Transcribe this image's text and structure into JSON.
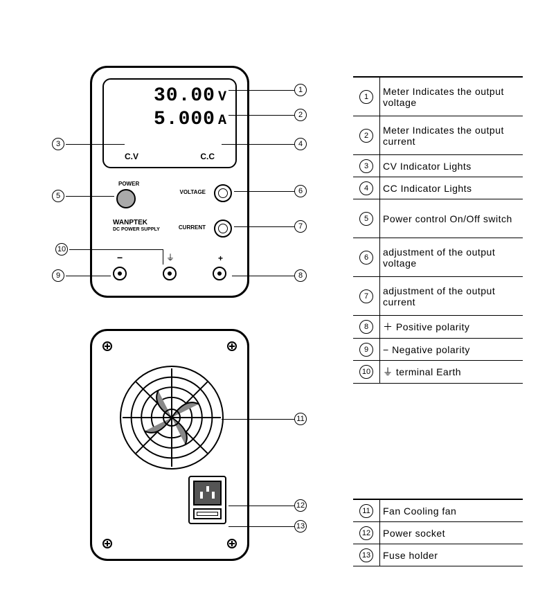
{
  "device": {
    "voltage_reading": "30.00",
    "voltage_unit": "V",
    "current_reading": "5.000",
    "current_unit": "A",
    "cv_label": "C.V",
    "cc_label": "C.C",
    "power_label": "POWER",
    "voltage_knob_label": "VOLTAGE",
    "current_knob_label": "CURRENT",
    "brand": "WANPTEK",
    "subbrand": "DC POWER SUPPLY",
    "neg_symbol": "−",
    "earth_symbol": "⏚",
    "pos_symbol": "+"
  },
  "callouts": {
    "1": "①",
    "2": "②",
    "3": "③",
    "4": "④",
    "5": "⑤",
    "6": "⑥",
    "7": "⑦",
    "8": "⑧",
    "9": "⑨",
    "10": "⑩",
    "11": "⑪",
    "12": "⑫",
    "13": "⑬"
  },
  "nums": {
    "1": "1",
    "2": "2",
    "3": "3",
    "4": "4",
    "5": "5",
    "6": "6",
    "7": "7",
    "8": "8",
    "9": "9",
    "10": "10",
    "11": "11",
    "12": "12",
    "13": "13"
  },
  "legend1": [
    {
      "n": "1",
      "text": "Meter Indicates the output voltage",
      "tall": true
    },
    {
      "n": "2",
      "text": "Meter Indicates the output current",
      "tall": true
    },
    {
      "n": "3",
      "text": "CV Indicator Lights",
      "tall": false
    },
    {
      "n": "4",
      "text": "CC Indicator Lights",
      "tall": false
    },
    {
      "n": "5",
      "text": "Power control On/Off switch",
      "tall": true
    },
    {
      "n": "6",
      "text": "adjustment of the output voltage",
      "tall": true
    },
    {
      "n": "7",
      "text": "adjustment of the output current",
      "tall": true
    },
    {
      "n": "8",
      "text": "＋  Positive polarity",
      "tall": false
    },
    {
      "n": "9",
      "text": "−   Negative polarity",
      "tall": false
    },
    {
      "n": "10",
      "text": "⏚   terminal Earth",
      "tall": false
    }
  ],
  "legend2": [
    {
      "n": "11",
      "text": "Fan Cooling fan"
    },
    {
      "n": "12",
      "text": "Power socket"
    },
    {
      "n": "13",
      "text": "Fuse holder"
    }
  ],
  "style": {
    "stroke": "#000000",
    "fill": "#ffffff",
    "font": "Arial"
  }
}
